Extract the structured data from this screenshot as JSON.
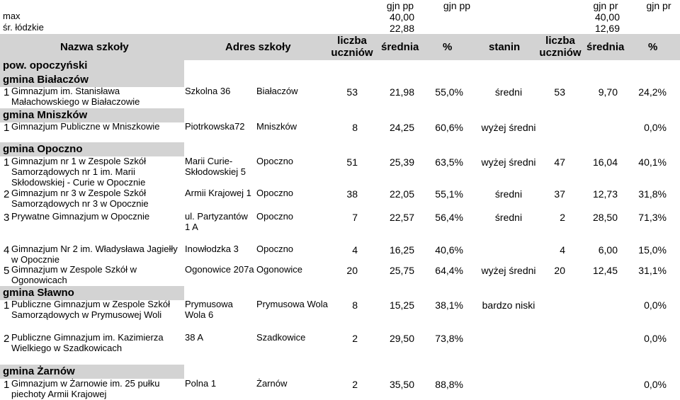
{
  "top_headers": {
    "gjn_pp_1": "gjn pp",
    "gjn_pp_2": "gjn pp",
    "gjn_pr_1": "gjn pr",
    "gjn_pr_2": "gjn pr"
  },
  "summary": {
    "max": {
      "label": "max",
      "pp": "40,00",
      "pr": "40,00"
    },
    "lodzkie": {
      "label": "śr. łódzkie",
      "pp": "22,88",
      "pr": "12,69"
    }
  },
  "columns": {
    "name": "Nazwa szkoły",
    "address": "Adres szkoły",
    "count_pp": "liczba uczniów",
    "avg_pp": "średnia",
    "pct_pp": "%",
    "stanin": "stanin",
    "count_pr": "liczba uczniów",
    "avg_pr": "średnia",
    "pct_pr": "%"
  },
  "district": "pow. opoczyński",
  "gminas": [
    {
      "name": "gmina Białaczów"
    },
    {
      "name": "gmina Mniszków"
    },
    {
      "name": "gmina Opoczno"
    },
    {
      "name": "gmina Sławno"
    },
    {
      "name": "gmina Żarnów"
    }
  ],
  "rows": [
    {
      "no": "1",
      "name": "Gimnazjum im. Stanisława Małachowskiego w Białaczowie",
      "street": "Szkolna 36",
      "city": "Białaczów",
      "count_pp": "53",
      "avg_pp": "21,98",
      "pct_pp": "55,0%",
      "stanin": "średni",
      "count_pr": "53",
      "avg_pr": "9,70",
      "pct_pr": "24,2%"
    },
    {
      "no": "1",
      "name": "Gimnazjum Publiczne w Mniszkowie",
      "street": "Piotrkowska72",
      "city": "Mniszków",
      "count_pp": "8",
      "avg_pp": "24,25",
      "pct_pp": "60,6%",
      "stanin": "wyżej średni",
      "count_pr": "",
      "avg_pr": "",
      "pct_pr": "0,0%"
    },
    {
      "no": "1",
      "name": "Gimnazjum nr 1 w Zespole Szkół Samorządowych nr 1 im. Marii Skłodowskiej - Curie w Opocznie",
      "street": "Marii Curie-Skłodowskiej 5",
      "city": "Opoczno",
      "count_pp": "51",
      "avg_pp": "25,39",
      "pct_pp": "63,5%",
      "stanin": "wyżej średni",
      "count_pr": "47",
      "avg_pr": "16,04",
      "pct_pr": "40,1%"
    },
    {
      "no": "2",
      "name": "Gimnazjum nr 3 w Zespole Szkół Samorządowych nr 3 w Opocznie",
      "street": "Armii Krajowej 1",
      "city": "Opoczno",
      "count_pp": "38",
      "avg_pp": "22,05",
      "pct_pp": "55,1%",
      "stanin": "średni",
      "count_pr": "37",
      "avg_pr": "12,73",
      "pct_pr": "31,8%"
    },
    {
      "no": "3",
      "name": "Prywatne Gimnazjum w Opocznie",
      "street": "ul. Partyzantów 1 A",
      "city": "Opoczno",
      "count_pp": "7",
      "avg_pp": "22,57",
      "pct_pp": "56,4%",
      "stanin": "średni",
      "count_pr": "2",
      "avg_pr": "28,50",
      "pct_pr": "71,3%"
    },
    {
      "no": "4",
      "name": "Gimnazjum Nr 2 im. Władysława Jagiełły w Opocznie",
      "street": "Inowłodzka 3",
      "city": "Opoczno",
      "count_pp": "4",
      "avg_pp": "16,25",
      "pct_pp": "40,6%",
      "stanin": "",
      "count_pr": "4",
      "avg_pr": "6,00",
      "pct_pr": "15,0%"
    },
    {
      "no": "5",
      "name": "Gimnazjum w Zespole Szkół w Ogonowicach",
      "street": "Ogonowice 207a",
      "city": "Ogonowice",
      "count_pp": "20",
      "avg_pp": "25,75",
      "pct_pp": "64,4%",
      "stanin": "wyżej średni",
      "count_pr": "20",
      "avg_pr": "12,45",
      "pct_pr": "31,1%"
    },
    {
      "no": "1",
      "name": "Publiczne Gimnazjum w Zespole Szkół Samorządowych w Prymusowej Woli",
      "street": "Prymusowa Wola 6",
      "city": "Prymusowa Wola",
      "count_pp": "8",
      "avg_pp": "15,25",
      "pct_pp": "38,1%",
      "stanin": "bardzo niski",
      "count_pr": "",
      "avg_pr": "",
      "pct_pr": "0,0%"
    },
    {
      "no": "2",
      "name": "Publiczne Gimnazjum im. Kazimierza Wielkiego w Szadkowicach",
      "street": "38 A",
      "city": "Szadkowice",
      "count_pp": "2",
      "avg_pp": "29,50",
      "pct_pp": "73,8%",
      "stanin": "",
      "count_pr": "",
      "avg_pr": "",
      "pct_pr": "0,0%"
    },
    {
      "no": "1",
      "name": "Gimnazjum w Żarnowie im. 25 pułku piechoty Armii Krajowej",
      "street": "Polna 1",
      "city": "Żarnów",
      "count_pp": "2",
      "avg_pp": "35,50",
      "pct_pp": "88,8%",
      "stanin": "",
      "count_pr": "",
      "avg_pr": "",
      "pct_pr": "0,0%"
    }
  ]
}
